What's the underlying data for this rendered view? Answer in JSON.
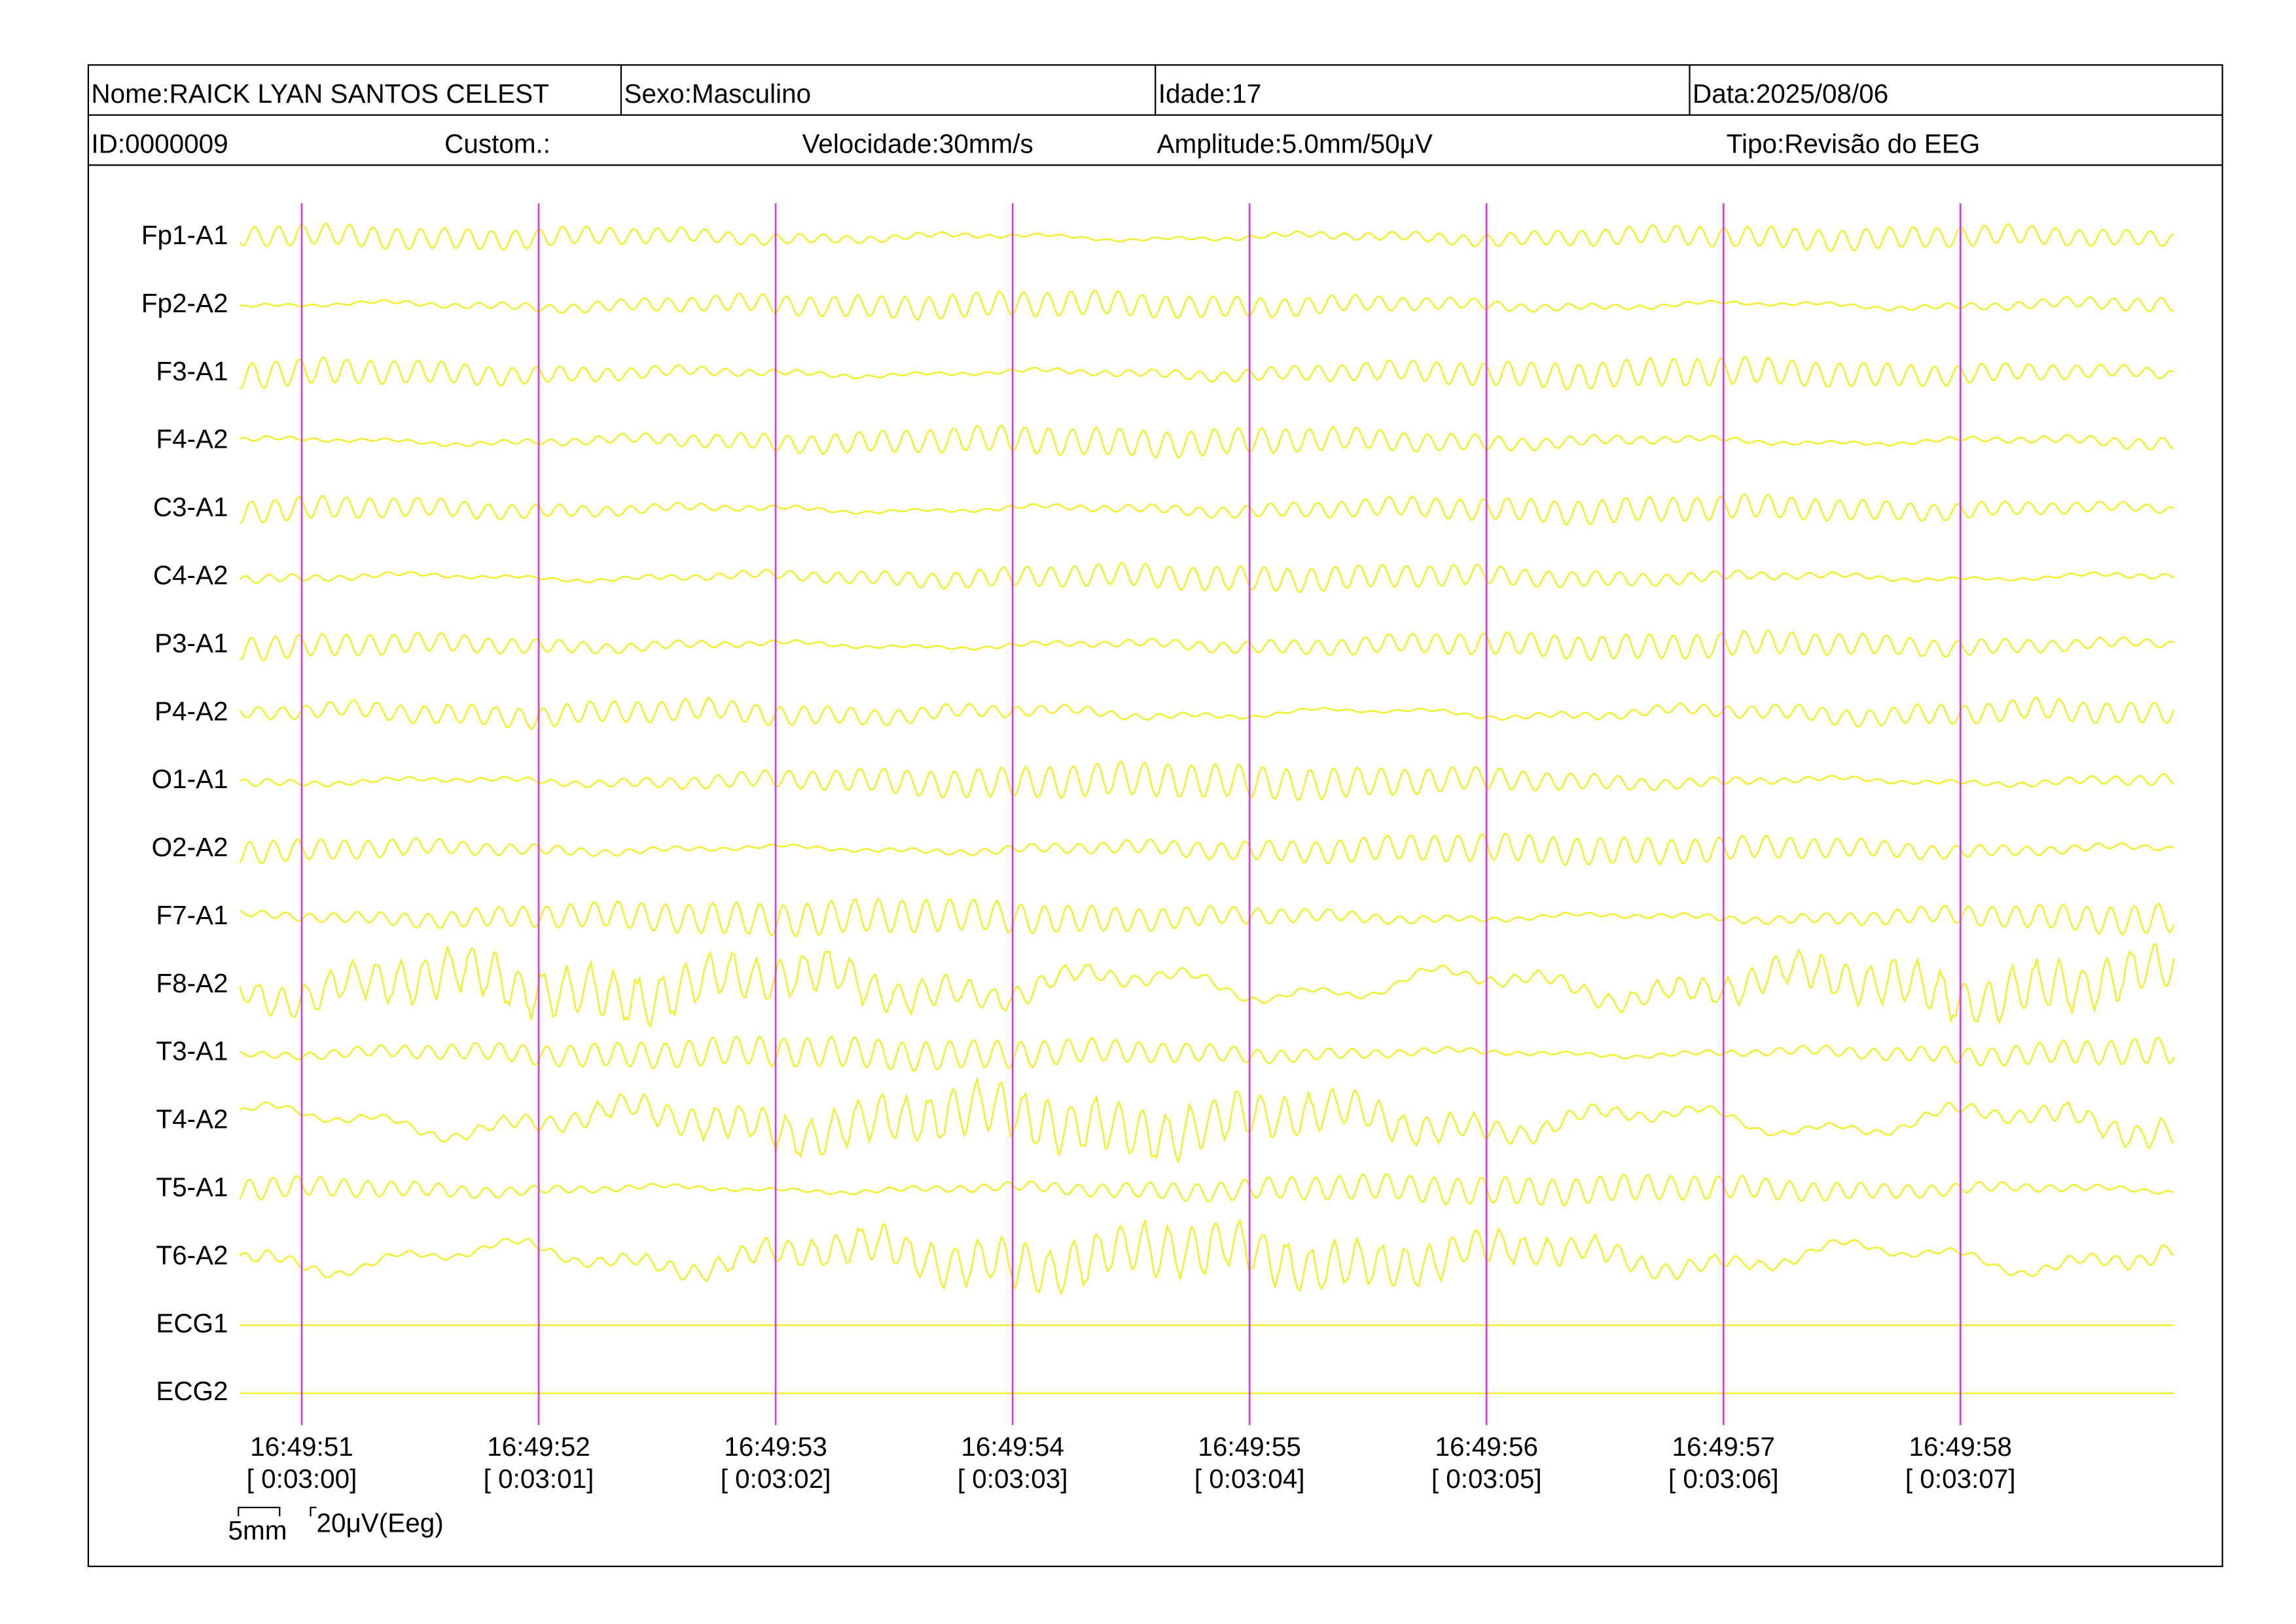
{
  "header": {
    "name": "Nome:RAICK LYAN SANTOS CELEST",
    "sex": "Sexo:Masculino",
    "age": "Idade:17",
    "date": "Data:2025/08/06",
    "id": "ID:0000009",
    "custom": "Custom.:",
    "speed": "Velocidade:30mm/s",
    "amplitude": "Amplitude:5.0mm/50μV",
    "type": "Tipo:Revisão do EEG"
  },
  "channels": [
    "Fp1-A1",
    "Fp2-A2",
    "F3-A1",
    "F4-A2",
    "C3-A1",
    "C4-A2",
    "P3-A1",
    "P4-A2",
    "O1-A1",
    "O2-A2",
    "F7-A1",
    "F8-A2",
    "T3-A1",
    "T4-A2",
    "T5-A1",
    "T6-A2",
    "ECG1",
    "ECG2"
  ],
  "time_marks": [
    {
      "clock": "16:49:51",
      "elapsed": "[ 0:03:00]"
    },
    {
      "clock": "16:49:52",
      "elapsed": "[ 0:03:01]"
    },
    {
      "clock": "16:49:53",
      "elapsed": "[ 0:03:02]"
    },
    {
      "clock": "16:49:54",
      "elapsed": "[ 0:03:03]"
    },
    {
      "clock": "16:49:55",
      "elapsed": "[ 0:03:04]"
    },
    {
      "clock": "16:49:56",
      "elapsed": "[ 0:03:05]"
    },
    {
      "clock": "16:49:57",
      "elapsed": "[ 0:03:06]"
    },
    {
      "clock": "16:49:58",
      "elapsed": "[ 0:03:07]"
    }
  ],
  "scale": {
    "length": "5mm",
    "amplitude": "20μV(Eeg)"
  }
}
